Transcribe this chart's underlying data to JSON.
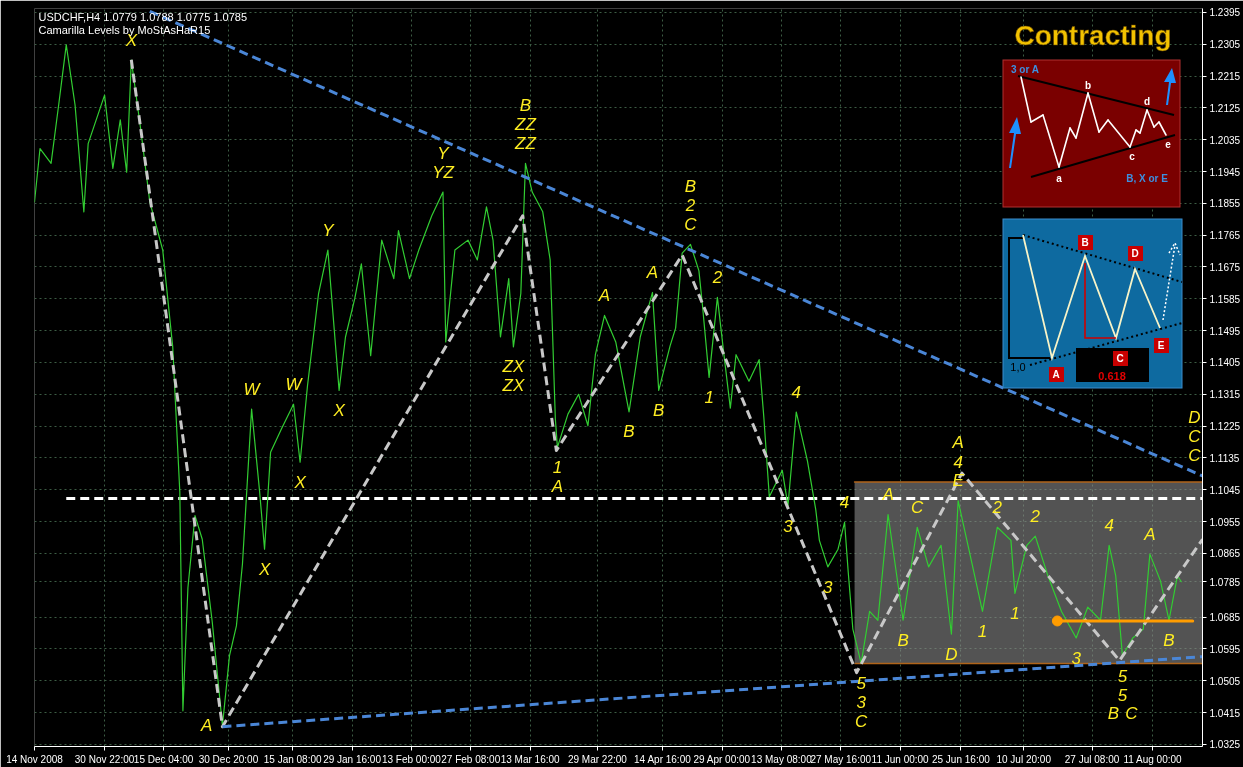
{
  "chart_data": {
    "type": "line",
    "title": "USDCHF,H4 1.0779 1.0788 1.0775 1.0785",
    "subtitle": "Camarilla Levels by MoStAsHaR15",
    "xlim": [
      "2008-11-14T00:00",
      "2009-08-23T00:00"
    ],
    "ylim": [
      1.0319,
      1.2406
    ],
    "xticks": [
      {
        "value": "2008-11-14T00:00",
        "label": "14 Nov 2008"
      },
      {
        "value": "2008-11-30T22:00",
        "label": "30 Nov 22:00"
      },
      {
        "value": "2008-12-15T04:00",
        "label": "15 Dec 04:00"
      },
      {
        "value": "2008-12-30T20:00",
        "label": "30 Dec 20:00"
      },
      {
        "value": "2009-01-15T08:00",
        "label": "15 Jan 08:00"
      },
      {
        "value": "2009-01-29T16:00",
        "label": "29 Jan 16:00"
      },
      {
        "value": "2009-02-13T00:00",
        "label": "13 Feb 00:00"
      },
      {
        "value": "2009-02-27T08:00",
        "label": "27 Feb 08:00"
      },
      {
        "value": "2009-03-13T16:00",
        "label": "13 Mar 16:00"
      },
      {
        "value": "2009-03-29T22:00",
        "label": "29 Mar 22:00"
      },
      {
        "value": "2009-04-14T16:00",
        "label": "14 Apr 16:00"
      },
      {
        "value": "2009-04-29T00:00",
        "label": "29 Apr 00:00"
      },
      {
        "value": "2009-05-13T08:00",
        "label": "13 May 08:00"
      },
      {
        "value": "2009-05-27T16:00",
        "label": "27 May 16:00"
      },
      {
        "value": "2009-06-11T00:00",
        "label": "11 Jun 00:00"
      },
      {
        "value": "2009-06-25T16:00",
        "label": "25 Jun 16:00"
      },
      {
        "value": "2009-07-10T20:00",
        "label": "10 Jul 20:00"
      },
      {
        "value": "2009-07-27T08:00",
        "label": "27 Jul 08:00"
      },
      {
        "value": "2009-08-11T00:00",
        "label": "11 Aug 00:00"
      }
    ],
    "yticks": [
      1.0325,
      1.0415,
      1.0505,
      1.0595,
      1.0685,
      1.0785,
      1.0865,
      1.0955,
      1.1045,
      1.1135,
      1.1225,
      1.1315,
      1.1405,
      1.1495,
      1.1585,
      1.1675,
      1.1765,
      1.1855,
      1.1945,
      1.2035,
      1.2125,
      1.2215,
      1.2305,
      1.2395
    ],
    "grid": true,
    "series": [
      {
        "type": "line",
        "color": "#b0641a",
        "x": [
          "2009-05-31T00:00",
          "2009-08-23T00:00"
        ],
        "values": [
          1.1067,
          1.1067
        ],
        "lower": [
          1.0554,
          1.0554
        ],
        "upper": [
          1.1067,
          1.1067
        ]
      },
      {
        "type": "line",
        "color": "#ffffff",
        "line_style": "dashed",
        "x": [
          "2008-11-21T16:00",
          "2009-08-23T00:00"
        ],
        "values": [
          1.102,
          1.102
        ]
      },
      {
        "color": "#32cd32",
        "x": [
          "2008-11-14T00:00",
          "2008-11-15T08:00",
          "2008-11-18T00:00",
          "2008-11-19T20:00",
          "2008-11-21T16:00",
          "2008-11-23T19:00",
          "2008-11-25T22:00",
          "2008-11-26T23:00",
          "2008-11-30T22:00",
          "2008-12-02T22:00",
          "2008-12-04T17:00",
          "2008-12-06T06:00",
          "2008-12-07T09:00",
          "2008-12-09T15:00",
          "2008-12-11T20:00",
          "2008-12-14T23:00",
          "2008-12-17T09:00",
          "2008-12-19T02:00",
          "2008-12-19T20:00",
          "2008-12-21T01:00",
          "2008-12-22T18:00",
          "2008-12-24T12:00",
          "2008-12-26T22:00",
          "2008-12-29T09:00",
          "2008-12-31T02:00",
          "2009-01-01T18:00",
          "2009-01-03T05:00",
          "2009-01-05T10:00",
          "2009-01-07T08:00",
          "2009-01-08T13:00",
          "2009-01-10T00:00",
          "2009-01-12T16:00",
          "2009-01-15T13:00",
          "2009-01-17T03:00",
          "2009-01-18T22:00",
          "2009-01-21T14:00",
          "2009-01-23T20:00",
          "2009-01-26T13:00",
          "2009-01-28T02:00",
          "2009-01-30T08:00",
          "2009-01-31T22:00",
          "2009-02-03T04:00",
          "2009-02-05T20:00",
          "2009-02-08T18:00",
          "2009-02-09T21:00",
          "2009-02-12T13:00",
          "2009-02-14T19:00",
          "2009-02-17T22:00",
          "2009-02-20T15:00",
          "2009-02-21T07:00",
          "2009-02-23T12:00",
          "2009-02-26T16:00",
          "2009-02-28T22:00",
          "2009-03-03T03:00",
          "2009-03-04T17:00",
          "2009-03-06T12:00",
          "2009-03-08T12:00",
          "2009-03-09T15:00",
          "2009-03-11T10:00",
          "2009-03-12T13:00",
          "2009-03-14T04:00",
          "2009-03-16T17:00",
          "2009-03-18T12:00",
          "2009-03-19T18:00",
          "2009-03-20T06:00",
          "2009-03-22T19:00",
          "2009-03-25T09:00",
          "2009-03-27T15:00",
          "2009-03-29T10:00",
          "2009-03-31T15:00",
          "2009-04-03T08:00",
          "2009-04-06T13:00",
          "2009-04-09T06:00",
          "2009-04-12T05:00",
          "2009-04-13T17:00",
          "2009-04-16T11:00",
          "2009-04-17T19:00",
          "2009-04-19T09:00",
          "2009-04-21T09:00",
          "2009-04-23T10:00",
          "2009-04-24T07:00",
          "2009-04-25T21:00",
          "2009-04-27T21:00",
          "2009-04-29T11:00",
          "2009-05-01T00:00",
          "2009-05-02T09:00",
          "2009-05-05T12:00",
          "2009-05-07T23:00",
          "2009-05-09T02:00",
          "2009-05-10T10:00",
          "2009-05-13T13:00",
          "2009-05-14T22:00",
          "2009-05-16T22:00",
          "2009-05-19T15:00",
          "2009-05-21T15:00",
          "2009-05-22T12:00",
          "2009-05-24T13:00",
          "2009-05-27T00:00",
          "2009-05-28T14:00",
          "2009-05-29T11:00",
          "2009-05-30T14:00",
          "2009-06-01T14:00",
          "2009-06-03T15:00",
          "2009-06-05T15:00",
          "2009-06-08T02:00",
          "2009-06-11T17:00",
          "2009-06-15T03:00",
          "2009-06-17T21:00",
          "2009-06-20T21:00",
          "2009-06-23T09:00",
          "2009-06-25T00:00",
          "2009-06-27T14:00",
          "2009-06-30T21:00",
          "2009-07-04T11:00",
          "2009-07-07T18:00",
          "2009-07-08T17:00",
          "2009-07-11T14:00",
          "2009-07-13T15:00",
          "2009-07-16T16:00",
          "2009-07-19T23:00",
          "2009-07-23T12:00",
          "2009-07-26T07:00",
          "2009-07-29T09:00",
          "2009-07-31T11:00",
          "2009-08-02T01:00",
          "2009-08-03T16:00",
          "2009-08-06T04:00",
          "2009-08-08T17:00",
          "2009-08-10T07:00",
          "2009-08-12T20:00",
          "2009-08-14T22:00",
          "2009-08-16T23:00",
          "2009-08-17T21:00"
        ],
        "values": [
          1.1859,
          1.201,
          1.1968,
          1.2133,
          1.2303,
          1.2133,
          1.1831,
          1.2024,
          1.2161,
          1.1954,
          1.2091,
          1.1943,
          1.226,
          1.2066,
          1.1859,
          1.1723,
          1.1449,
          1.1039,
          1.042,
          1.0768,
          1.0972,
          1.0905,
          1.0671,
          1.0378,
          1.0576,
          1.066,
          1.0835,
          1.1273,
          1.1042,
          1.0877,
          1.1151,
          1.1218,
          1.1287,
          1.1123,
          1.134,
          1.16,
          1.1723,
          1.1326,
          1.1477,
          1.1586,
          1.1684,
          1.1424,
          1.1751,
          1.1642,
          1.1778,
          1.1642,
          1.1723,
          1.182,
          1.1887,
          1.1463,
          1.1723,
          1.1751,
          1.1695,
          1.1845,
          1.1751,
          1.1477,
          1.1642,
          1.1449,
          1.16,
          1.1968,
          1.1887,
          1.1831,
          1.1695,
          1.1246,
          1.1165,
          1.1259,
          1.1315,
          1.1226,
          1.1427,
          1.1538,
          1.1463,
          1.1265,
          1.1477,
          1.1603,
          1.1326,
          1.1452,
          1.1502,
          1.1714,
          1.1739,
          1.1664,
          1.1564,
          1.1363,
          1.1589,
          1.1427,
          1.1276,
          1.1427,
          1.1352,
          1.1413,
          1.1251,
          1.1025,
          1.11,
          1.1,
          1.1265,
          1.1126,
          1.0989,
          1.0902,
          1.0827,
          1.0877,
          1.0953,
          1.0813,
          1.0651,
          1.0554,
          1.0701,
          1.0676,
          1.0975,
          1.0676,
          1.0939,
          1.0827,
          1.0888,
          1.0637,
          1.1014,
          1.0877,
          1.0701,
          1.0939,
          1.0902,
          1.0752,
          1.0888,
          1.0914,
          1.0802,
          1.0701,
          1.0626,
          1.0713,
          1.0676,
          1.0888,
          1.0802,
          1.0576,
          1.0626,
          1.0651,
          1.0863,
          1.0788,
          1.0676,
          1.0802,
          1.0785
        ]
      },
      {
        "type": "line",
        "color": "#c8c8c8",
        "line_style": "dashed",
        "x": [
          "2008-12-07T09:00",
          "2008-12-29T09:00",
          "2009-03-11T21:00",
          "2009-03-20T00:00",
          "2009-04-19T09:00",
          "2009-05-31T12:00",
          "2009-06-25T22:00",
          "2009-08-02T23:00",
          "2009-08-23T00:00"
        ],
        "values": [
          1.2261,
          1.0375,
          1.182,
          1.1156,
          1.1709,
          1.0528,
          1.1092,
          1.0562,
          1.0905
        ]
      },
      {
        "type": "line",
        "color": "#4a86d6",
        "line_style": "dashed",
        "x": [
          "2008-12-11T20:00",
          "2009-08-23T00:00"
        ],
        "values": [
          1.2398,
          1.1084
        ]
      },
      {
        "type": "line",
        "color": "#4a86d6",
        "line_style": "dashed",
        "x": [
          "2008-12-29T09:00",
          "2009-08-23T00:00"
        ],
        "values": [
          1.0375,
          1.0573
        ]
      },
      {
        "type": "line",
        "color": "#ff9c00",
        "x": [
          "2009-07-18T23:00",
          "2009-08-20T15:00"
        ],
        "values": [
          1.0674,
          1.0674
        ]
      },
      {
        "type": "scatter",
        "color": "#ff9c00",
        "marker": "circle",
        "x": [
          "2009-07-18T23:00"
        ],
        "values": [
          1.0674
        ]
      }
    ],
    "annotations": [
      {
        "text": "X",
        "x": "2008-12-07T09:00",
        "y": 1.226
      },
      {
        "text": "A",
        "x": "2008-12-29T09:00",
        "y": 1.0378
      },
      {
        "text": "W",
        "x": "2009-01-05T10:00",
        "y": 1.1273
      },
      {
        "text": "X",
        "x": "2009-01-08T13:00",
        "y": 1.0877
      },
      {
        "text": "W",
        "x": "2009-01-15T13:00",
        "y": 1.1287
      },
      {
        "text": "X",
        "x": "2009-01-17T03:00",
        "y": 1.1123
      },
      {
        "text": "Y",
        "x": "2009-01-23T20:00",
        "y": 1.1723
      },
      {
        "text": "X",
        "x": "2009-01-26T13:00",
        "y": 1.1326
      },
      {
        "text": "YZ",
        "x": "2009-02-20T15:00",
        "y": 1.1887
      },
      {
        "text": "Y",
        "x": "2009-02-20T15:00",
        "y": 1.1887
      },
      {
        "text": "ZX",
        "x": "2009-03-09T15:00",
        "y": 1.1449
      },
      {
        "text": "ZX",
        "x": "2009-03-09T15:00",
        "y": 1.1449
      },
      {
        "text": "ZZ",
        "x": "2009-03-12T13:00",
        "y": 1.1968
      },
      {
        "text": "ZZ",
        "x": "2009-03-12T13:00",
        "y": 1.1968
      },
      {
        "text": "B",
        "x": "2009-03-12T13:00",
        "y": 1.1968
      },
      {
        "text": "1",
        "x": "2009-03-20T06:00",
        "y": 1.1165
      },
      {
        "text": "A",
        "x": "2009-03-20T06:00",
        "y": 1.1165
      },
      {
        "text": "A",
        "x": "2009-03-31T15:00",
        "y": 1.1538
      },
      {
        "text": "B",
        "x": "2009-04-06T13:00",
        "y": 1.1265
      },
      {
        "text": "A",
        "x": "2009-04-12T05:00",
        "y": 1.1603
      },
      {
        "text": "B",
        "x": "2009-04-13T17:00",
        "y": 1.1326
      },
      {
        "text": "C",
        "x": "2009-04-21T09:00",
        "y": 1.1739
      },
      {
        "text": "2",
        "x": "2009-04-21T09:00",
        "y": 1.1739
      },
      {
        "text": "B",
        "x": "2009-04-21T09:00",
        "y": 1.1739
      },
      {
        "text": "1",
        "x": "2009-04-25T21:00",
        "y": 1.1363
      },
      {
        "text": "2",
        "x": "2009-04-27T21:00",
        "y": 1.1589
      },
      {
        "text": "3",
        "x": "2009-05-14T22:00",
        "y": 1.1
      },
      {
        "text": "4",
        "x": "2009-05-16T22:00",
        "y": 1.1265
      },
      {
        "text": "3",
        "x": "2009-05-24T13:00",
        "y": 1.0827
      },
      {
        "text": "4",
        "x": "2009-05-28T14:00",
        "y": 1.0953
      },
      {
        "text": "5",
        "x": "2009-06-01T14:00",
        "y": 1.0554
      },
      {
        "text": "3",
        "x": "2009-06-01T14:00",
        "y": 1.0554
      },
      {
        "text": "C",
        "x": "2009-06-01T14:00",
        "y": 1.0554
      },
      {
        "text": "A",
        "x": "2009-06-08T02:00",
        "y": 1.0975
      },
      {
        "text": "B",
        "x": "2009-06-11T17:00",
        "y": 1.0676
      },
      {
        "text": "C",
        "x": "2009-06-15T03:00",
        "y": 1.0939
      },
      {
        "text": "D",
        "x": "2009-06-23T09:00",
        "y": 1.0637
      },
      {
        "text": "E",
        "x": "2009-06-25T00:00",
        "y": 1.1014
      },
      {
        "text": "4",
        "x": "2009-06-25T00:00",
        "y": 1.1014
      },
      {
        "text": "A",
        "x": "2009-06-25T00:00",
        "y": 1.1014
      },
      {
        "text": "1",
        "x": "2009-06-30T21:00",
        "y": 1.0701
      },
      {
        "text": "2",
        "x": "2009-07-04T11:00",
        "y": 1.0939
      },
      {
        "text": "1",
        "x": "2009-07-08T17:00",
        "y": 1.0752
      },
      {
        "text": "2",
        "x": "2009-07-13T15:00",
        "y": 1.0914
      },
      {
        "text": "3",
        "x": "2009-07-23T12:00",
        "y": 1.0626
      },
      {
        "text": "4",
        "x": "2009-07-31T11:00",
        "y": 1.0888
      },
      {
        "text": "5",
        "x": "2009-08-03T16:00",
        "y": 1.0576
      },
      {
        "text": "5",
        "x": "2009-08-03T16:00",
        "y": 1.0576
      },
      {
        "text": "B",
        "x": "2009-08-03T16:00",
        "y": 1.0576
      },
      {
        "text": "C",
        "x": "2009-08-03T16:00",
        "y": 1.0576
      },
      {
        "text": "A",
        "x": "2009-08-10T07:00",
        "y": 1.0863
      },
      {
        "text": "B",
        "x": "2009-08-14T22:00",
        "y": 1.0676
      },
      {
        "text": "C",
        "x": "2009-08-23T00:00",
        "y": 1.1084
      },
      {
        "text": "C",
        "x": "2009-08-23T00:00",
        "y": 1.1084
      },
      {
        "text": "D",
        "x": "2009-08-23T00:00",
        "y": 1.1084
      },
      "Contracting",
      "3 or A",
      "b",
      "d",
      "a",
      "c",
      "e",
      "B, X or E",
      "B",
      "D",
      "A",
      "C",
      "E",
      "1,0",
      "0.618"
    ]
  }
}
